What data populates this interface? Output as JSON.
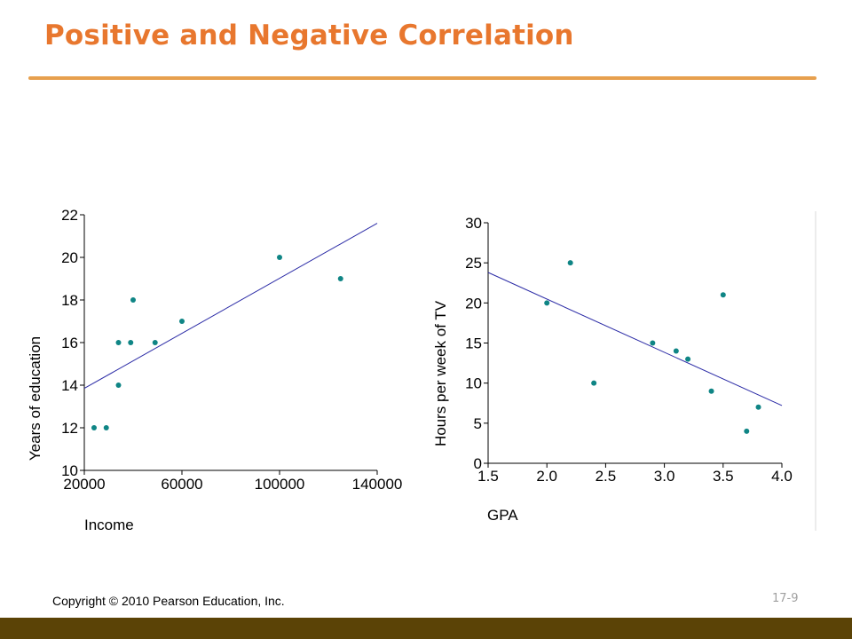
{
  "slide": {
    "title": "Positive and Negative Correlation",
    "copyright": "Copyright © 2010 Pearson Education, Inc.",
    "page_number": "17-9"
  },
  "colors": {
    "title": "#e8772e",
    "rule": "#e7a04e",
    "points": "#0f8585",
    "trend_line": "#2b2ba6",
    "footer_bar": "#5b4306"
  },
  "chart_data": [
    {
      "type": "scatter",
      "title": "",
      "xlabel": "Income",
      "ylabel": "Years of education",
      "xlim": [
        20000,
        140000
      ],
      "ylim": [
        10,
        22
      ],
      "x_ticks": [
        "20000",
        "60000",
        "100000",
        "140000"
      ],
      "y_ticks": [
        "10",
        "12",
        "14",
        "16",
        "18",
        "20",
        "22"
      ],
      "points": [
        {
          "x": 24000,
          "y": 12
        },
        {
          "x": 29000,
          "y": 12
        },
        {
          "x": 34000,
          "y": 14
        },
        {
          "x": 34000,
          "y": 16
        },
        {
          "x": 39000,
          "y": 16
        },
        {
          "x": 40000,
          "y": 18
        },
        {
          "x": 49000,
          "y": 16
        },
        {
          "x": 60000,
          "y": 17
        },
        {
          "x": 100000,
          "y": 20
        },
        {
          "x": 125000,
          "y": 19
        }
      ],
      "trend_line": [
        {
          "x": 20000,
          "y": 13.85
        },
        {
          "x": 140000,
          "y": 21.6
        }
      ],
      "grid": false
    },
    {
      "type": "scatter",
      "title": "",
      "xlabel": "GPA",
      "ylabel": "Hours per week of TV",
      "xlim": [
        1.5,
        4.0
      ],
      "ylim": [
        0,
        30
      ],
      "x_ticks": [
        "1.5",
        "2.0",
        "2.5",
        "3.0",
        "3.5",
        "4.0"
      ],
      "y_ticks": [
        "0",
        "5",
        "10",
        "15",
        "20",
        "25",
        "30"
      ],
      "points": [
        {
          "x": 2.0,
          "y": 20
        },
        {
          "x": 2.2,
          "y": 25
        },
        {
          "x": 2.4,
          "y": 10
        },
        {
          "x": 2.9,
          "y": 15
        },
        {
          "x": 3.1,
          "y": 14
        },
        {
          "x": 3.2,
          "y": 13
        },
        {
          "x": 3.4,
          "y": 9
        },
        {
          "x": 3.5,
          "y": 21
        },
        {
          "x": 3.7,
          "y": 4
        },
        {
          "x": 3.8,
          "y": 7
        }
      ],
      "trend_line": [
        {
          "x": 1.5,
          "y": 23.8
        },
        {
          "x": 4.0,
          "y": 7.2
        }
      ],
      "grid": false
    }
  ]
}
